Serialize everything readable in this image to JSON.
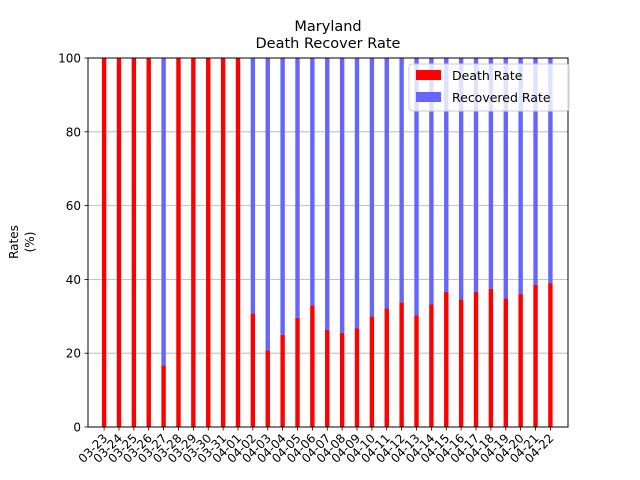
{
  "chart_data": {
    "type": "bar",
    "stacked": true,
    "title": "Maryland",
    "subtitle": "Death Recover Rate",
    "xlabel": "",
    "ylabel": "Rates\n(%)",
    "ylim": [
      0,
      100
    ],
    "yticks": [
      0,
      20,
      40,
      60,
      80,
      100
    ],
    "grid": "y",
    "legend_position": "top-right",
    "categories": [
      "03-23",
      "03-24",
      "03-25",
      "03-26",
      "03-27",
      "03-28",
      "03-29",
      "03-30",
      "03-31",
      "04-01",
      "04-02",
      "04-03",
      "04-04",
      "04-05",
      "04-06",
      "04-07",
      "04-08",
      "04-09",
      "04-10",
      "04-11",
      "04-12",
      "04-13",
      "04-14",
      "04-15",
      "04-16",
      "04-17",
      "04-18",
      "04-19",
      "04-20",
      "04-21",
      "04-22"
    ],
    "series": [
      {
        "name": "Death Rate",
        "color": "#ff0000",
        "values": [
          100,
          100,
          100,
          100,
          16.7,
          100,
          100,
          100,
          100,
          100,
          30.8,
          20.8,
          25,
          29.6,
          33,
          26.3,
          25.5,
          26.8,
          30,
          32.1,
          33.8,
          30.3,
          33.3,
          36.6,
          34.6,
          36.6,
          37.5,
          34.8,
          36.1,
          38.5,
          39
        ]
      },
      {
        "name": "Recovered Rate",
        "color": "#6666ff",
        "values": [
          0,
          0,
          0,
          0,
          83.3,
          0,
          0,
          0,
          0,
          0,
          69.2,
          79.2,
          75,
          70.4,
          67,
          73.7,
          74.5,
          73.2,
          70,
          67.9,
          66.2,
          69.7,
          66.7,
          63.4,
          65.4,
          63.4,
          62.5,
          65.2,
          63.9,
          61.5,
          61
        ]
      }
    ]
  }
}
